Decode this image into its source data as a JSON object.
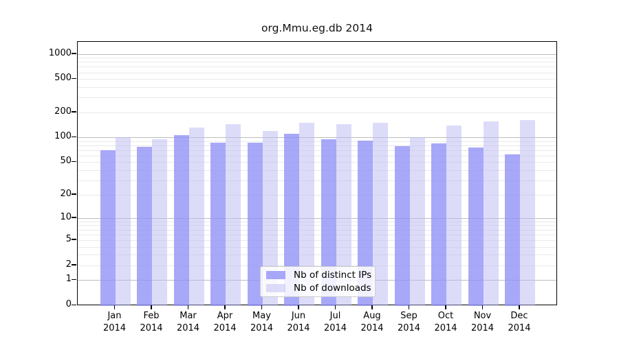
{
  "title": "org.Mmu.eg.db 2014",
  "chart_data": {
    "type": "bar",
    "title": "org.Mmu.eg.db 2014",
    "categories": [
      "Jan",
      "Feb",
      "Mar",
      "Apr",
      "May",
      "Jun",
      "Jul",
      "Aug",
      "Sep",
      "Oct",
      "Nov",
      "Dec"
    ],
    "category_year": "2014",
    "series": [
      {
        "name": "Nb of distinct IPs",
        "color": "rgba(146,146,247,0.80)",
        "values": [
          70,
          77,
          107,
          87,
          86,
          110,
          95,
          92,
          79,
          84,
          76,
          62
        ]
      },
      {
        "name": "Nb of downloads",
        "color": "rgba(185,185,243,0.50)",
        "values": [
          100,
          94,
          130,
          145,
          120,
          150,
          145,
          150,
          100,
          140,
          155,
          162
        ]
      }
    ],
    "yscale": "log1p",
    "ylim": [
      0,
      1070
    ],
    "y_ticks": [
      0,
      1,
      2,
      5,
      10,
      20,
      50,
      100,
      200,
      500,
      1000
    ],
    "y_major_gridlines": [
      1,
      10,
      100,
      1000
    ],
    "grid": "horizontal log minor+major, full width",
    "legend_position": "bottom-center",
    "colors": {
      "major_grid": "#bdbdbd",
      "minor_grid": "#e9e9e9",
      "axis": "#000000",
      "title_text": "#111111"
    }
  }
}
